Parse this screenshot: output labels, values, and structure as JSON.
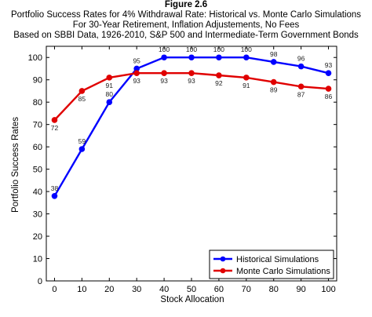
{
  "figure_label": "Figure 2.6",
  "chart_data": {
    "type": "line",
    "title": "Portfolio Success Rates for 4% Withdrawal Rate: Historical vs. Monte Carlo Simulations",
    "subtitle_lines": [
      "For 30-Year Retirement, Inflation Adjustements, No Fees",
      "Based on  SBBI Data, 1926-2010, S&P 500 and Intermediate-Term Government Bonds"
    ],
    "xlabel": "Stock Allocation",
    "ylabel": "Portfolio Success Rates",
    "x": [
      0,
      10,
      20,
      30,
      40,
      50,
      60,
      70,
      80,
      90,
      100
    ],
    "xlim": [
      -3,
      103
    ],
    "ylim": [
      0,
      105
    ],
    "xticks": [
      0,
      10,
      20,
      30,
      40,
      50,
      60,
      70,
      80,
      90,
      100
    ],
    "yticks": [
      0,
      10,
      20,
      30,
      40,
      50,
      60,
      70,
      80,
      90,
      100
    ],
    "grid": false,
    "legend_position": "bottom-right",
    "series": [
      {
        "name": "Historical Simulations",
        "color": "#0000ff",
        "values": [
          38,
          59,
          80,
          95,
          100,
          100,
          100,
          100,
          98,
          96,
          93
        ],
        "labels": [
          "38",
          "59",
          "80",
          "95",
          "100",
          "100",
          "100",
          "100",
          "98",
          "96",
          "93"
        ],
        "label_position": "above"
      },
      {
        "name": "Monte Carlo Simulations",
        "color": "#e00000",
        "values": [
          72,
          85,
          91,
          93,
          93,
          93,
          92,
          91,
          89,
          87,
          86
        ],
        "labels": [
          "72",
          "85",
          "91",
          "93",
          "93",
          "93",
          "92",
          "91",
          "89",
          "87",
          "86"
        ],
        "label_position": "below"
      }
    ]
  }
}
